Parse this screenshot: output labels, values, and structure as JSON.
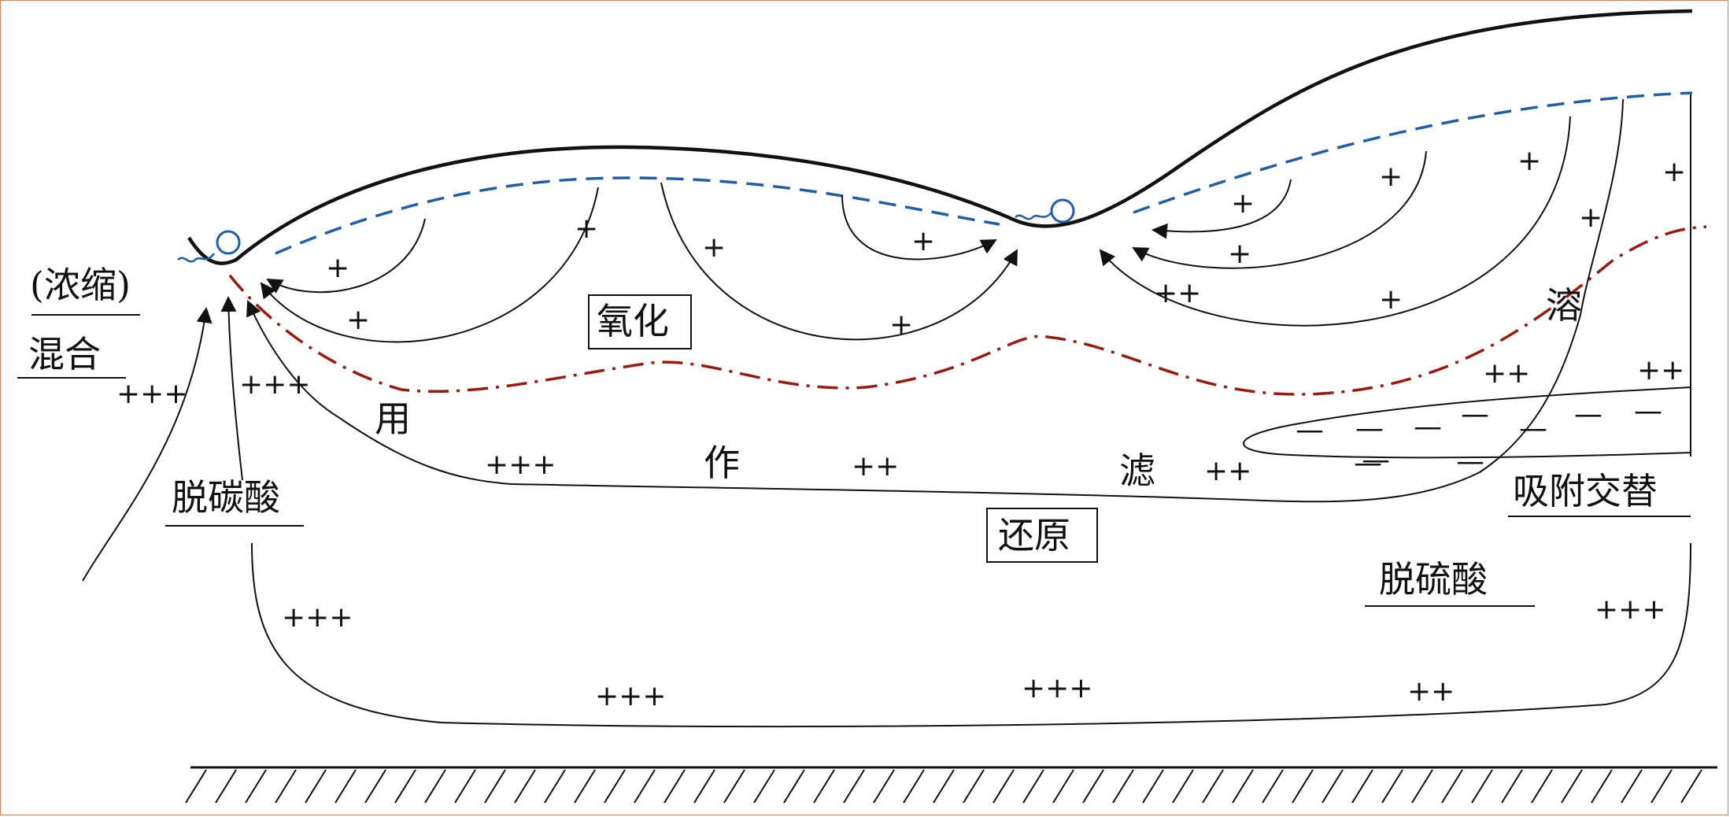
{
  "labels": {
    "concentrate": "(浓缩)",
    "mixing": "混合",
    "decarbonation": "脱碳酸",
    "oxidation": "氧化",
    "reduction": "还原",
    "leaching_1": "用",
    "leaching_2": "作",
    "leaching_3": "滤",
    "dissolution": "溶",
    "adsorption_exchange": "吸附交替",
    "desulfation": "脱硫酸"
  },
  "signs": {
    "plus": "+",
    "double_plus": "++",
    "triple_plus": "+++",
    "minus": "—"
  },
  "colors": {
    "ground_line": "#111111",
    "water_table": "#1f5fa8",
    "redox_boundary": "#9a1a10",
    "frame": "#e07850"
  }
}
